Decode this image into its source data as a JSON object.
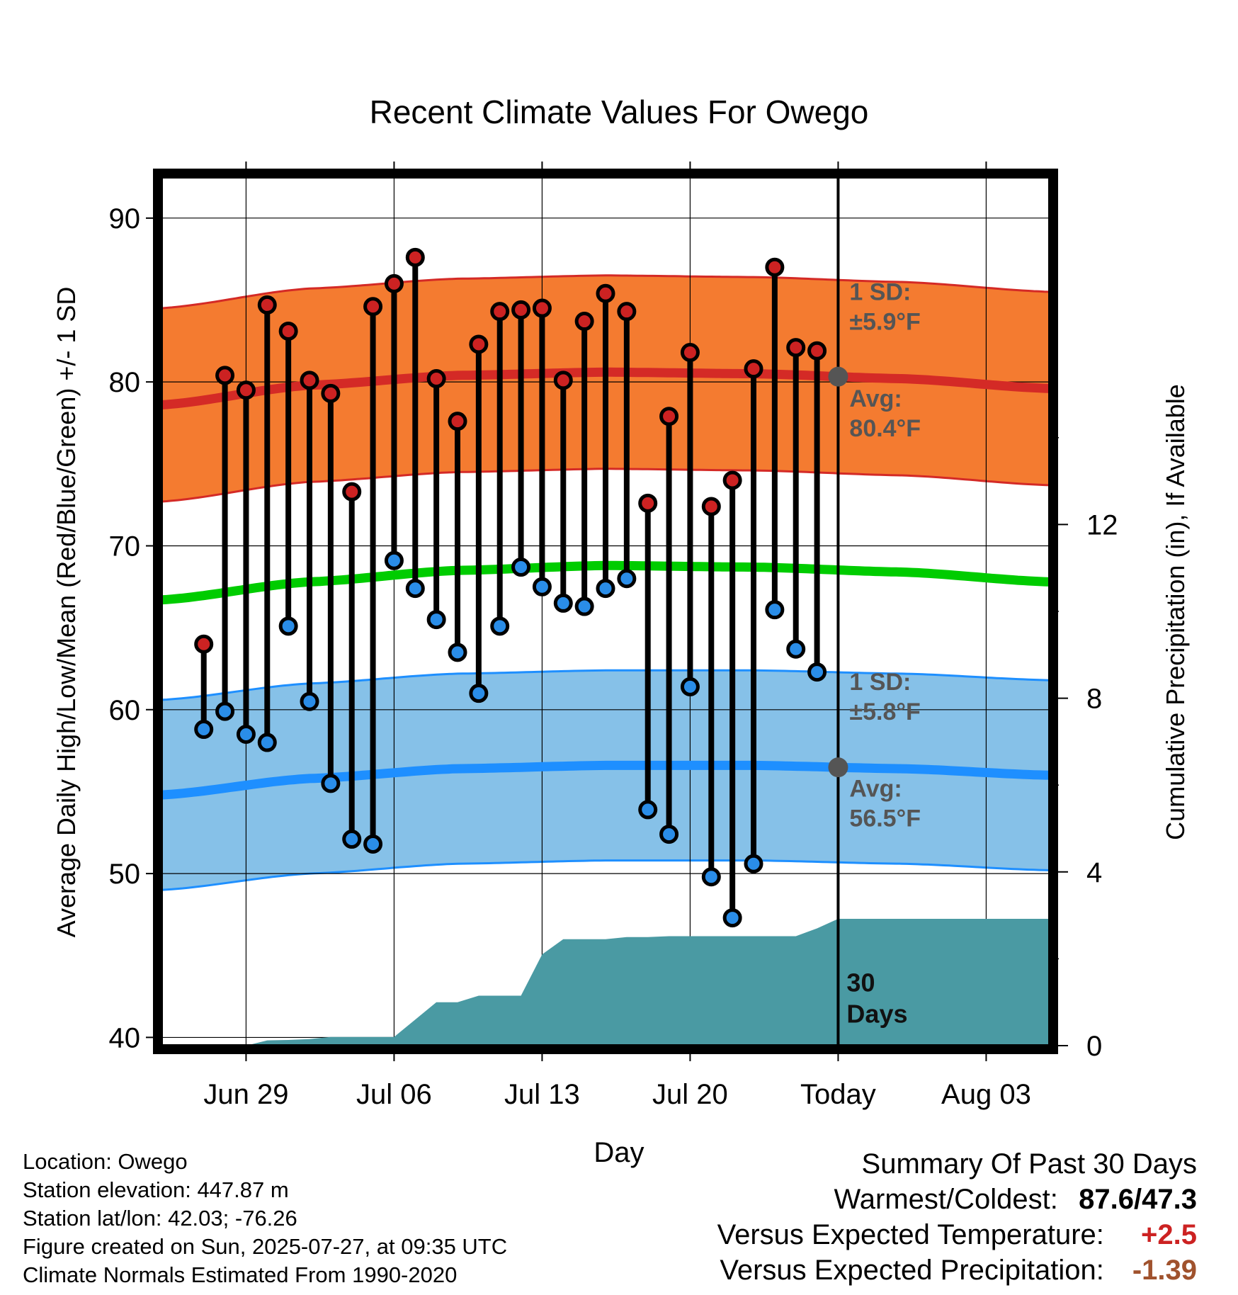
{
  "chart_data": {
    "type": "line",
    "title": "Recent Climate Values For Owego",
    "xlabel": "Day",
    "ylabel": "Average Daily High/Low/Mean (Red/Blue/Green) +/- 1 SD",
    "y2label": "Cumulative Precipitation (in), If Available",
    "ylim": [
      39.5,
      92.5
    ],
    "y_ticks": [
      40,
      50,
      60,
      70,
      80,
      90
    ],
    "y2lim": [
      0,
      20
    ],
    "y2_ticks": [
      0,
      4,
      8,
      12
    ],
    "x_tick_labels": [
      {
        "label": "Jun 29",
        "date": "2025-06-29"
      },
      {
        "label": "Jul 06",
        "date": "2025-07-06"
      },
      {
        "label": "Jul 13",
        "date": "2025-07-13"
      },
      {
        "label": "Jul 20",
        "date": "2025-07-20"
      },
      {
        "label": "Today",
        "date": "2025-07-27"
      },
      {
        "label": "Aug 03",
        "date": "2025-08-03"
      }
    ],
    "xlim": [
      "2025-06-25",
      "2025-08-06"
    ],
    "today": "2025-07-27",
    "today_label": "30\nDays",
    "grid": true,
    "series": [
      {
        "name": "High",
        "dates": [
          "2025-06-27",
          "2025-06-28",
          "2025-06-29",
          "2025-06-30",
          "2025-07-01",
          "2025-07-02",
          "2025-07-03",
          "2025-07-04",
          "2025-07-05",
          "2025-07-06",
          "2025-07-07",
          "2025-07-08",
          "2025-07-09",
          "2025-07-10",
          "2025-07-11",
          "2025-07-12",
          "2025-07-13",
          "2025-07-14",
          "2025-07-15",
          "2025-07-16",
          "2025-07-17",
          "2025-07-18",
          "2025-07-19",
          "2025-07-20",
          "2025-07-21",
          "2025-07-22",
          "2025-07-23",
          "2025-07-24",
          "2025-07-25",
          "2025-07-26"
        ],
        "values": [
          64.0,
          80.4,
          79.5,
          84.7,
          83.1,
          80.1,
          79.3,
          73.3,
          84.6,
          86.0,
          87.6,
          80.2,
          77.6,
          82.3,
          84.3,
          84.4,
          84.5,
          80.1,
          83.7,
          85.4,
          84.3,
          72.6,
          77.9,
          81.8,
          72.4,
          74.0,
          80.8,
          87.0,
          82.1,
          81.9
        ]
      },
      {
        "name": "Low",
        "dates": [
          "2025-06-27",
          "2025-06-28",
          "2025-06-29",
          "2025-06-30",
          "2025-07-01",
          "2025-07-02",
          "2025-07-03",
          "2025-07-04",
          "2025-07-05",
          "2025-07-06",
          "2025-07-07",
          "2025-07-08",
          "2025-07-09",
          "2025-07-10",
          "2025-07-11",
          "2025-07-12",
          "2025-07-13",
          "2025-07-14",
          "2025-07-15",
          "2025-07-16",
          "2025-07-17",
          "2025-07-18",
          "2025-07-19",
          "2025-07-20",
          "2025-07-21",
          "2025-07-22",
          "2025-07-23",
          "2025-07-24",
          "2025-07-25",
          "2025-07-26"
        ],
        "values": [
          58.8,
          59.9,
          58.5,
          58.0,
          65.1,
          60.5,
          55.5,
          52.1,
          51.8,
          69.1,
          67.4,
          65.5,
          63.5,
          61.0,
          65.1,
          68.7,
          67.5,
          66.5,
          66.3,
          67.4,
          68.0,
          53.9,
          52.4,
          61.4,
          49.8,
          47.3,
          50.6,
          66.1,
          63.7,
          62.3
        ]
      }
    ],
    "normals": {
      "dates": [
        "2025-06-25",
        "2025-07-02",
        "2025-07-09",
        "2025-07-16",
        "2025-07-23",
        "2025-07-30",
        "2025-08-06"
      ],
      "high_avg": [
        78.6,
        79.8,
        80.4,
        80.6,
        80.5,
        80.2,
        79.6
      ],
      "high_sd": 5.9,
      "low_avg": [
        54.8,
        55.8,
        56.4,
        56.6,
        56.6,
        56.4,
        56.0
      ],
      "low_sd": 5.8,
      "mean_avg": [
        66.7,
        67.8,
        68.5,
        68.8,
        68.7,
        68.4,
        67.8
      ]
    },
    "precipitation": {
      "dates": [
        "2025-06-25",
        "2025-06-29",
        "2025-06-30",
        "2025-07-01",
        "2025-07-02",
        "2025-07-03",
        "2025-07-04",
        "2025-07-05",
        "2025-07-06",
        "2025-07-07",
        "2025-07-08",
        "2025-07-09",
        "2025-07-10",
        "2025-07-11",
        "2025-07-12",
        "2025-07-13",
        "2025-07-14",
        "2025-07-15",
        "2025-07-16",
        "2025-07-17",
        "2025-07-18",
        "2025-07-19",
        "2025-07-20",
        "2025-07-21",
        "2025-07-22",
        "2025-07-23",
        "2025-07-24",
        "2025-07-25",
        "2025-07-26",
        "2025-07-27",
        "2025-08-06"
      ],
      "values": [
        0.0,
        0.0,
        0.12,
        0.13,
        0.15,
        0.2,
        0.2,
        0.2,
        0.2,
        0.6,
        1.0,
        1.0,
        1.15,
        1.15,
        1.15,
        2.1,
        2.45,
        2.45,
        2.45,
        2.5,
        2.5,
        2.52,
        2.52,
        2.52,
        2.52,
        2.52,
        2.52,
        2.52,
        2.7,
        2.92,
        2.92
      ]
    },
    "annotations": {
      "high_sd": {
        "line1": "1 SD:",
        "line2": "±5.9°F"
      },
      "high_avg": {
        "line1": "Avg:",
        "line2": "80.4°F"
      },
      "low_sd": {
        "line1": "1 SD:",
        "line2": "±5.8°F"
      },
      "low_avg": {
        "line1": "Avg:",
        "line2": "56.5°F"
      }
    },
    "colors": {
      "high_band": "#f47b30",
      "high_line": "#d42a26",
      "low_band": "#86c1e8",
      "low_line": "#1e8fff",
      "mean_line": "#00cc00",
      "precip": "#4a9aa3",
      "high_dot": "#cc2222",
      "low_dot": "#2a8de8",
      "annotation": "#555555"
    }
  },
  "info": {
    "location": "Location: Owego",
    "elevation": "Station elevation: 447.87 m",
    "latlon": "Station lat/lon: 42.03; -76.26",
    "created": "Figure created on Sun, 2025-07-27, at 09:35 UTC",
    "normals": "Climate Normals Estimated From 1990-2020"
  },
  "summary": {
    "title": "Summary Of Past 30 Days",
    "warmest_coldest_label": "Warmest/Coldest:",
    "warmest_coldest_value": "87.6/47.3",
    "temp_label": "Versus Expected Temperature:",
    "temp_value": "+2.5",
    "temp_color": "#cc2222",
    "precip_label": "Versus Expected Precipitation:",
    "precip_value": "-1.39",
    "precip_color": "#a0522d"
  }
}
